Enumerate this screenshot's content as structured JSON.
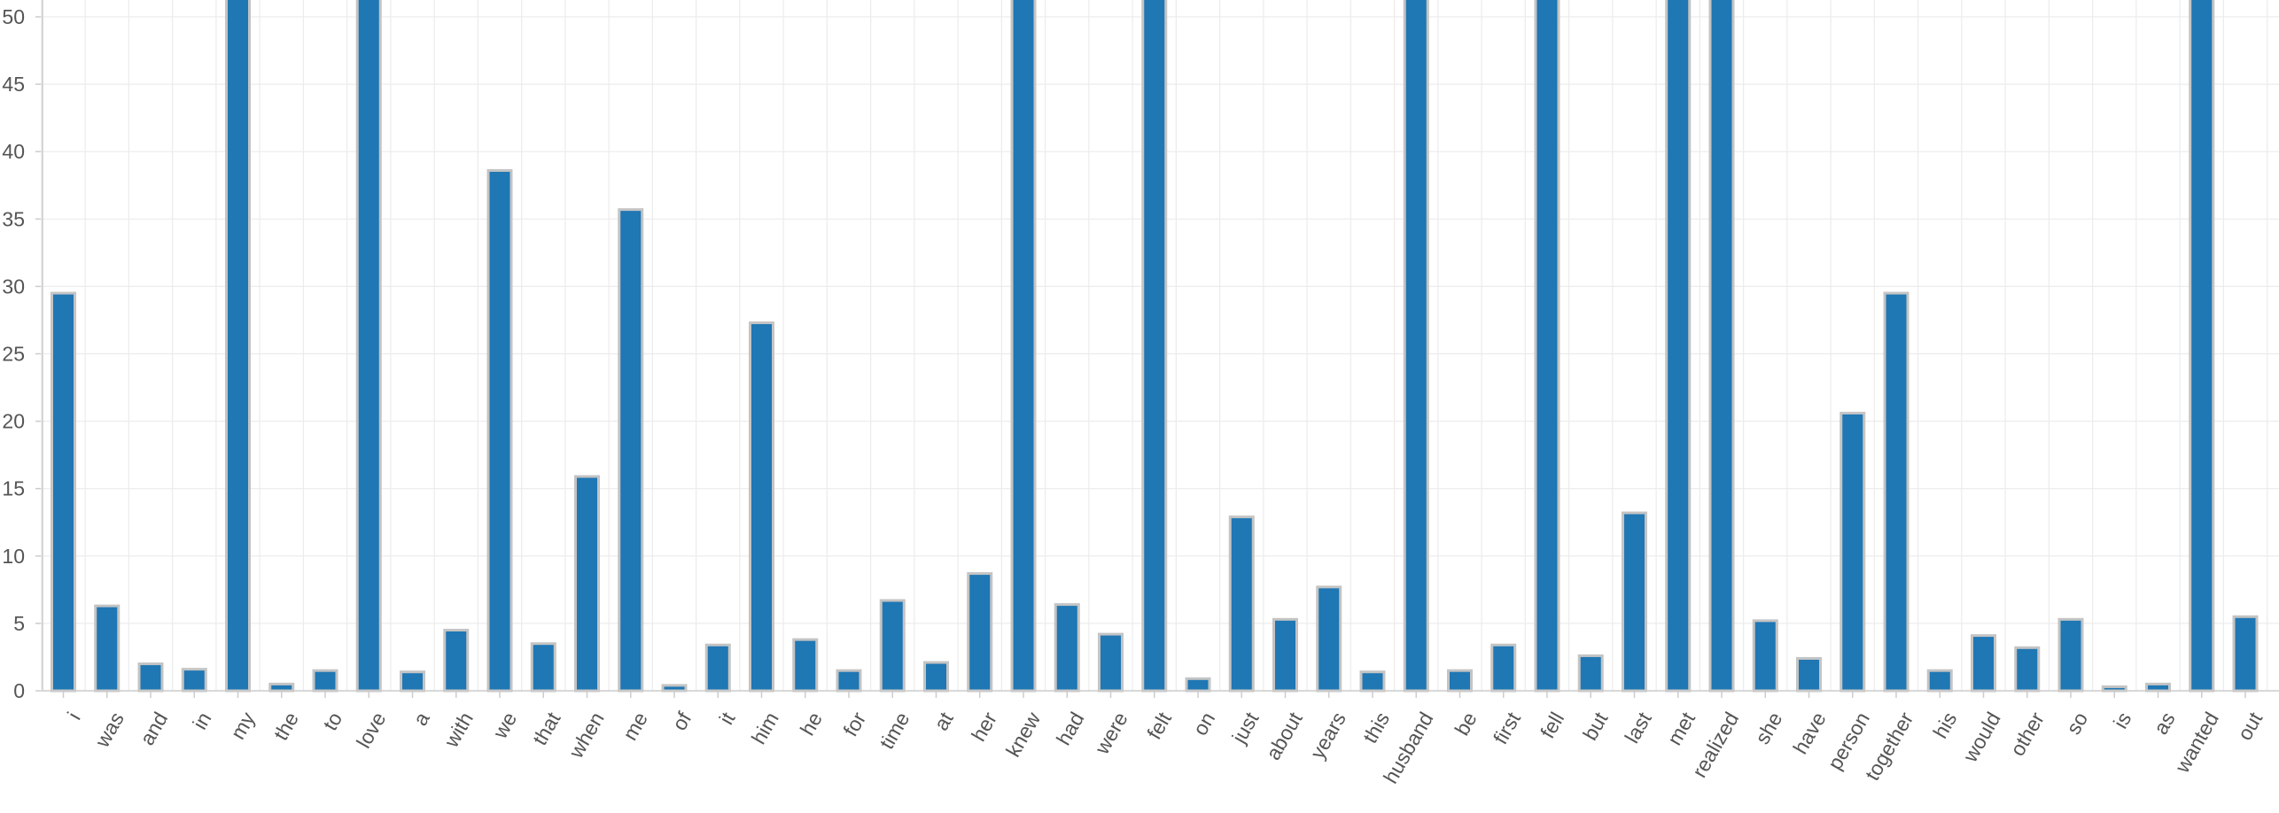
{
  "chart_data": {
    "type": "bar",
    "title": "",
    "xlabel": "",
    "ylabel": "",
    "ylim": [
      0,
      51.5
    ],
    "yticks": [
      0,
      5,
      10,
      15,
      20,
      25,
      30,
      35,
      40,
      45,
      50
    ],
    "grid": true,
    "bar_color": "#1f77b4",
    "categories": [
      "i",
      "was",
      "and",
      "in",
      "my",
      "the",
      "to",
      "love",
      "a",
      "with",
      "we",
      "that",
      "when",
      "me",
      "of",
      "it",
      "him",
      "he",
      "for",
      "time",
      "at",
      "her",
      "knew",
      "had",
      "were",
      "felt",
      "on",
      "just",
      "about",
      "years",
      "this",
      "husband",
      "be",
      "first",
      "fell",
      "but",
      "last",
      "met",
      "realized",
      "she",
      "have",
      "person",
      "together",
      "his",
      "would",
      "other",
      "so",
      "is",
      "as",
      "wanted",
      "out"
    ],
    "values": [
      29.5,
      6.3,
      2.0,
      1.6,
      51.5,
      0.5,
      1.5,
      51.5,
      1.4,
      4.5,
      38.6,
      3.5,
      15.9,
      35.7,
      0.4,
      3.4,
      27.3,
      3.8,
      1.5,
      6.7,
      2.1,
      8.7,
      51.5,
      6.4,
      4.2,
      51.5,
      0.9,
      12.9,
      5.3,
      7.7,
      1.4,
      51.5,
      1.5,
      3.4,
      51.5,
      2.6,
      13.2,
      51.5,
      51.5,
      5.2,
      2.4,
      20.6,
      29.5,
      1.5,
      4.1,
      3.2,
      5.3,
      0.3,
      0.5,
      51.5,
      5.5
    ]
  }
}
